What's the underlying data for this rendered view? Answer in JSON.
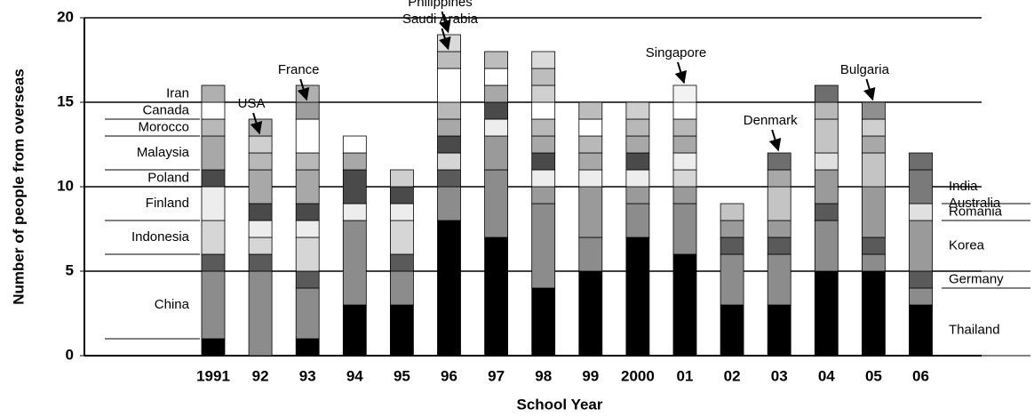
{
  "chart_data": {
    "type": "stacked_bar",
    "x_label": "School Year",
    "y_label": "Number of people from overseas",
    "categories": [
      "1991",
      "92",
      "93",
      "94",
      "95",
      "96",
      "97",
      "98",
      "99",
      "2000",
      "01",
      "02",
      "03",
      "04",
      "05",
      "06"
    ],
    "ylim": [
      0,
      20
    ],
    "yticks": [
      0,
      5,
      10,
      15,
      20
    ],
    "grid": true,
    "series": [
      {
        "name": "Thailand",
        "color": "#000000",
        "values": [
          1,
          0,
          1,
          3,
          3,
          8,
          7,
          4,
          5,
          7,
          6,
          3,
          3,
          5,
          5,
          3
        ]
      },
      {
        "name": "China",
        "color": "#8c8c8c",
        "values": [
          4,
          5,
          3,
          5,
          2,
          2,
          4,
          5,
          2,
          2,
          3,
          3,
          3,
          3,
          1,
          1
        ]
      },
      {
        "name": "Germany",
        "color": "#5a5a5a",
        "values": [
          1,
          1,
          1,
          0,
          1,
          1,
          0,
          0,
          0,
          0,
          0,
          1,
          1,
          1,
          1,
          1
        ]
      },
      {
        "name": "Korea",
        "color": "#9a9a9a",
        "values": [
          0,
          0,
          0,
          0,
          0,
          0,
          2,
          1,
          3,
          1,
          1,
          1,
          1,
          2,
          3,
          3
        ]
      },
      {
        "name": "Indonesia",
        "color": "#d6d6d6",
        "values": [
          2,
          1,
          2,
          0,
          2,
          1,
          0,
          0,
          0,
          0,
          1,
          0,
          0,
          0,
          0,
          0
        ]
      },
      {
        "name": "Finland",
        "color": "#ededed",
        "values": [
          2,
          1,
          1,
          1,
          1,
          0,
          1,
          1,
          1,
          1,
          1,
          0,
          0,
          0,
          0,
          0
        ]
      },
      {
        "name": "Romania",
        "color": "#e0e0e0",
        "values": [
          0,
          0,
          0,
          0,
          0,
          0,
          0,
          0,
          0,
          0,
          0,
          0,
          0,
          1,
          0,
          1
        ]
      },
      {
        "name": "Poland",
        "color": "#4a4a4a",
        "values": [
          1,
          1,
          1,
          2,
          1,
          1,
          1,
          1,
          0,
          1,
          0,
          0,
          0,
          0,
          0,
          0
        ]
      },
      {
        "name": "Australia",
        "color": "#c4c4c4",
        "values": [
          0,
          0,
          0,
          0,
          0,
          0,
          0,
          0,
          0,
          0,
          0,
          1,
          2,
          2,
          2,
          0
        ]
      },
      {
        "name": "India",
        "color": "#7a7a7a",
        "values": [
          0,
          0,
          0,
          0,
          0,
          0,
          0,
          0,
          0,
          0,
          0,
          0,
          0,
          0,
          0,
          2
        ]
      },
      {
        "name": "Malaysia",
        "color": "#a8a8a8",
        "values": [
          2,
          2,
          2,
          1,
          0,
          1,
          1,
          1,
          1,
          1,
          1,
          0,
          1,
          0,
          1,
          0
        ]
      },
      {
        "name": "Morocco",
        "color": "#b8b8b8",
        "values": [
          1,
          1,
          1,
          0,
          0,
          1,
          0,
          1,
          1,
          1,
          1,
          0,
          0,
          1,
          0,
          0
        ]
      },
      {
        "name": "Canada",
        "color": "#ffffff",
        "values": [
          1,
          0,
          2,
          1,
          0,
          2,
          1,
          1,
          1,
          0,
          1,
          0,
          0,
          0,
          0,
          0
        ]
      },
      {
        "name": "USA",
        "color": "#cfcfcf",
        "values": [
          0,
          1,
          0,
          0,
          1,
          0,
          0,
          1,
          0,
          1,
          0,
          0,
          0,
          0,
          1,
          0
        ]
      },
      {
        "name": "France",
        "color": "#9e9e9e",
        "values": [
          0,
          0,
          1,
          0,
          0,
          0,
          0,
          0,
          0,
          0,
          0,
          0,
          0,
          0,
          0,
          0
        ]
      },
      {
        "name": "Saudi Arabia",
        "color": "#bdbdbd",
        "values": [
          0,
          0,
          0,
          0,
          0,
          1,
          1,
          1,
          1,
          0,
          0,
          0,
          0,
          0,
          0,
          0
        ]
      },
      {
        "name": "Singapore",
        "color": "#f2f2f2",
        "values": [
          0,
          0,
          0,
          0,
          0,
          0,
          0,
          0,
          0,
          0,
          1,
          0,
          0,
          0,
          0,
          0
        ]
      },
      {
        "name": "Bulgaria",
        "color": "#8f8f8f",
        "values": [
          0,
          0,
          0,
          0,
          0,
          0,
          0,
          0,
          0,
          0,
          0,
          0,
          0,
          0,
          1,
          0
        ]
      },
      {
        "name": "Iran",
        "color": "#b0b0b0",
        "values": [
          1,
          1,
          1,
          0,
          0,
          0,
          0,
          0,
          0,
          0,
          0,
          0,
          0,
          0,
          0,
          0
        ]
      },
      {
        "name": "Philippines",
        "color": "#dadada",
        "values": [
          0,
          0,
          0,
          0,
          0,
          1,
          0,
          1,
          0,
          0,
          0,
          0,
          0,
          0,
          0,
          0
        ]
      },
      {
        "name": "Denmark",
        "color": "#6e6e6e",
        "values": [
          0,
          0,
          0,
          0,
          0,
          0,
          0,
          0,
          0,
          0,
          0,
          0,
          1,
          1,
          0,
          1
        ]
      }
    ]
  }
}
